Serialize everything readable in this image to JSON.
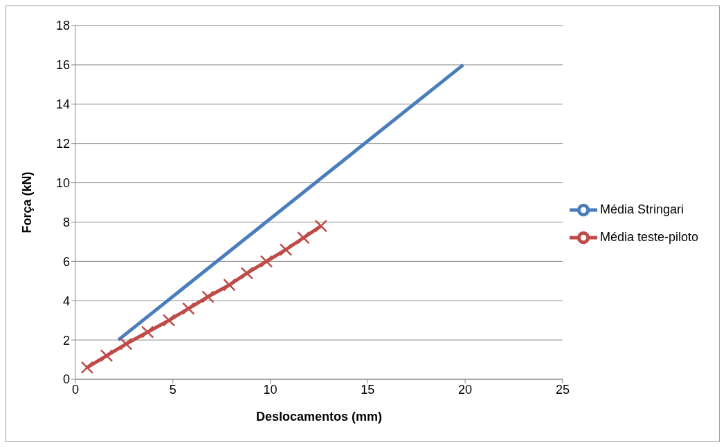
{
  "chart_data": {
    "type": "line",
    "xlabel": "Deslocamentos (mm)",
    "ylabel": "Força (kN)",
    "xlim": [
      0,
      25
    ],
    "xticks": [
      0,
      5,
      10,
      15,
      20,
      25
    ],
    "ylim": [
      0,
      18
    ],
    "yticks": [
      0,
      2,
      4,
      6,
      8,
      10,
      12,
      14,
      16,
      18
    ],
    "grid": "y",
    "legend": "right",
    "series": [
      {
        "name": "Média Stringari",
        "color": "#4a7ebb",
        "marker": "none",
        "x": [
          2.2,
          19.9
        ],
        "values": [
          2,
          16
        ]
      },
      {
        "name": "Média teste-piloto",
        "color": "#be4b48",
        "marker": "cross",
        "x": [
          0.6,
          1.6,
          2.6,
          3.7,
          4.8,
          5.8,
          6.8,
          7.9,
          8.8,
          9.8,
          10.8,
          11.7,
          12.6
        ],
        "values": [
          0.6,
          1.2,
          1.8,
          2.4,
          3.0,
          3.6,
          4.2,
          4.8,
          5.4,
          6.0,
          6.6,
          7.2,
          7.8
        ]
      }
    ]
  }
}
